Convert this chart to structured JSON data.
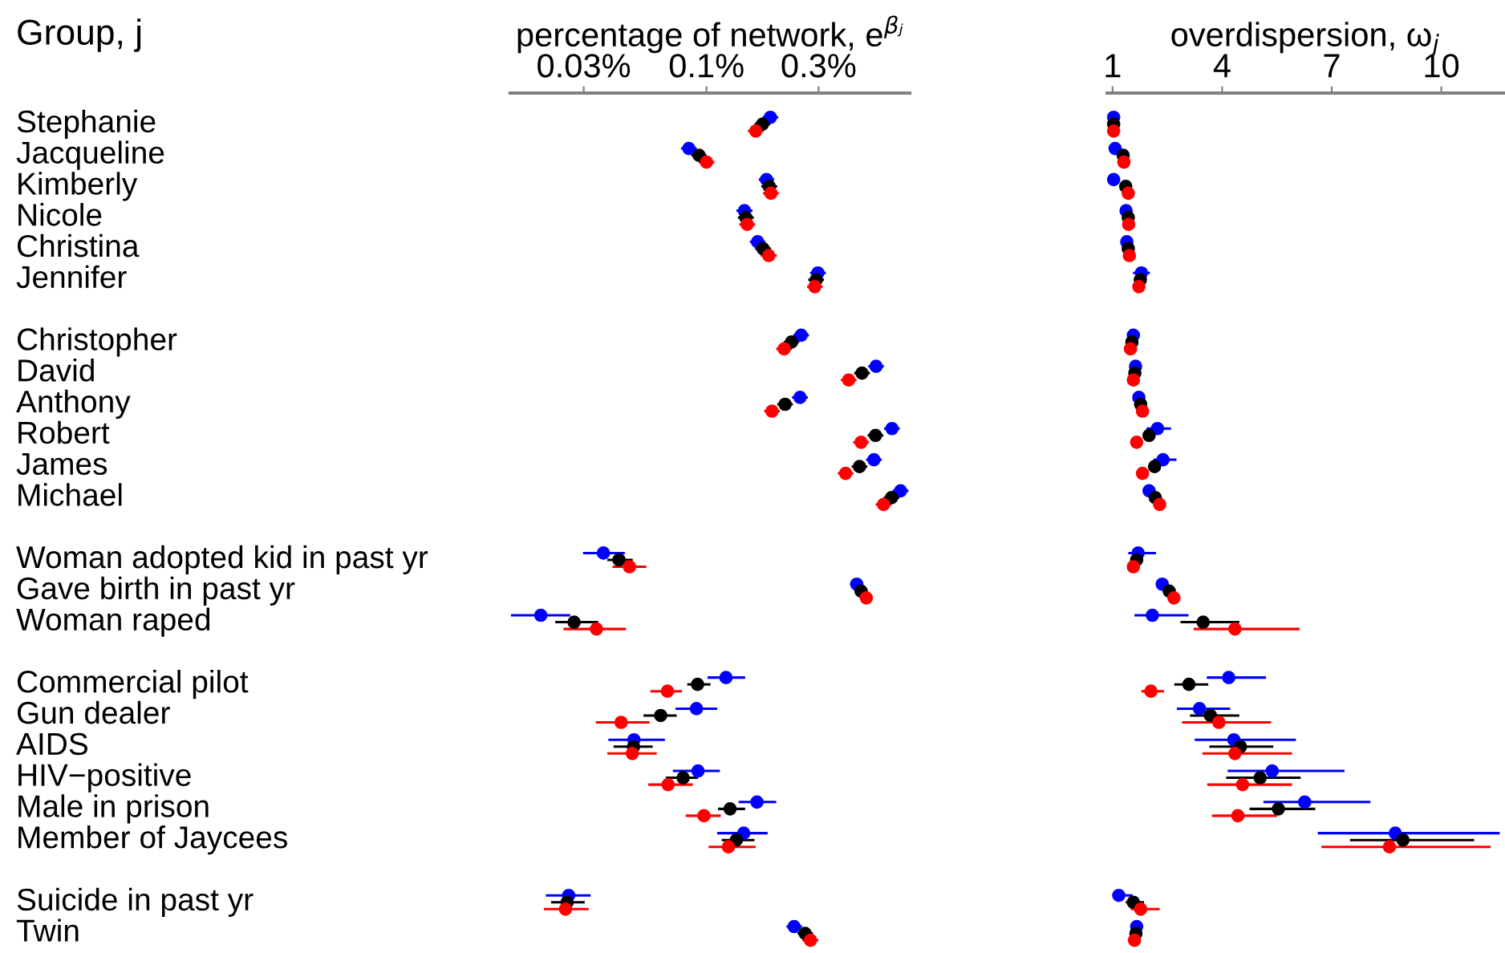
{
  "chart_data": [
    {
      "type": "scatter",
      "orientation": "horizontal",
      "ylabel": "Group, j",
      "xlabel": "percentage of network, e$^{βⱼ}$",
      "log": "x",
      "marker": "circle",
      "categories": [
        "Stephanie",
        "Jacqueline",
        "Kimberly",
        "Nicole",
        "Christina",
        "Jennifer",
        null,
        "Christopher",
        "David",
        "Anthony",
        "Robert",
        "James",
        "Michael",
        null,
        "Woman adopted kid in past yr",
        "Gave birth in past yr",
        "Woman raped",
        null,
        "Commercial pilot",
        "Gun dealer",
        "AIDS",
        "HIV−positive",
        "Male in prison",
        "Member of Jaycees",
        null,
        "Suicide in past yr",
        "Twin"
      ],
      "xlim": [
        0.0146,
        0.733
      ],
      "xticks": [
        {
          "value": 0.03,
          "label": "0.03%"
        },
        {
          "value": 0.1,
          "label": "0.1%"
        },
        {
          "value": 0.3,
          "label": "0.3%"
        }
      ],
      "series": [
        {
          "color": "#0000ff",
          "values": [
            0.187,
            0.0841,
            0.18,
            0.145,
            0.165,
            0.298,
            null,
            0.253,
            0.527,
            0.25,
            0.616,
            0.516,
            0.67,
            null,
            0.0364,
            0.436,
            0.0197,
            null,
            0.121,
            0.0906,
            0.0491,
            0.092,
            0.164,
            0.144,
            null,
            0.0259,
            0.236
          ],
          "errors": [
            [
              0.173,
              0.202
            ],
            [
              0.0779,
              0.0908
            ],
            [
              0.167,
              0.194
            ],
            [
              0.134,
              0.157
            ],
            [
              0.153,
              0.178
            ],
            [
              0.276,
              0.322
            ],
            null,
            [
              0.234,
              0.273
            ],
            [
              0.488,
              0.569
            ],
            [
              0.231,
              0.27
            ],
            [
              0.57,
              0.665
            ],
            [
              0.478,
              0.557
            ],
            [
              0.62,
              0.724
            ],
            null,
            [
              0.0298,
              0.0449
            ],
            [
              0.409,
              0.464
            ],
            [
              0.0147,
              0.0263
            ],
            null,
            [
              0.101,
              0.146
            ],
            [
              0.0738,
              0.111
            ],
            [
              0.0382,
              0.0665
            ],
            [
              0.0719,
              0.114
            ],
            [
              0.137,
              0.198
            ],
            [
              0.111,
              0.182
            ],
            null,
            [
              0.0207,
              0.0321
            ],
            [
              0.219,
              0.255
            ]
          ]
        },
        {
          "color": "#000000",
          "values": [
            0.173,
            0.093,
            0.185,
            0.147,
            0.174,
            0.293,
            null,
            0.23,
            0.459,
            0.216,
            0.524,
            0.448,
            0.613,
            null,
            0.0424,
            0.455,
            0.0273,
            null,
            0.0916,
            0.0638,
            0.0489,
            0.0795,
            0.126,
            0.134,
            null,
            0.0255,
            0.263
          ],
          "errors": [
            [
              0.16,
              0.187
            ],
            [
              0.0861,
              0.1
            ],
            [
              0.171,
              0.2
            ],
            [
              0.136,
              0.159
            ],
            [
              0.161,
              0.188
            ],
            [
              0.271,
              0.316
            ],
            null,
            [
              0.213,
              0.248
            ],
            [
              0.425,
              0.496
            ],
            [
              0.2,
              0.233
            ],
            [
              0.485,
              0.566
            ],
            [
              0.415,
              0.484
            ],
            [
              0.568,
              0.662
            ],
            null,
            [
              0.0378,
              0.0485
            ],
            [
              0.427,
              0.485
            ],
            [
              0.0227,
              0.0346
            ],
            null,
            [
              0.0828,
              0.104
            ],
            [
              0.0539,
              0.0746
            ],
            [
              0.0402,
              0.059
            ],
            [
              0.0672,
              0.092
            ],
            [
              0.112,
              0.146
            ],
            [
              0.116,
              0.16
            ],
            null,
            [
              0.0218,
              0.0303
            ],
            [
              0.244,
              0.284
            ]
          ]
        },
        {
          "color": "#ff0000",
          "values": [
            0.162,
            0.1,
            0.188,
            0.149,
            0.184,
            0.289,
            null,
            0.214,
            0.403,
            0.19,
            0.455,
            0.391,
            0.567,
            null,
            0.047,
            0.479,
            0.034,
            null,
            0.0682,
            0.0433,
            0.0483,
            0.0686,
            0.0975,
            0.124,
            null,
            0.0251,
            0.277
          ],
          "errors": [
            [
              0.15,
              0.175
            ],
            [
              0.0926,
              0.108
            ],
            [
              0.174,
              0.203
            ],
            [
              0.138,
              0.161
            ],
            [
              0.17,
              0.199
            ],
            [
              0.268,
              0.312
            ],
            null,
            [
              0.198,
              0.231
            ],
            [
              0.373,
              0.435
            ],
            [
              0.176,
              0.205
            ],
            [
              0.421,
              0.491
            ],
            [
              0.362,
              0.422
            ],
            [
              0.525,
              0.612
            ],
            null,
            [
              0.0398,
              0.0554
            ],
            [
              0.45,
              0.51
            ],
            [
              0.0246,
              0.0454
            ],
            null,
            [
              0.0577,
              0.0786
            ],
            [
              0.0338,
              0.0572
            ],
            [
              0.0378,
              0.0614
            ],
            [
              0.0565,
              0.0874
            ],
            [
              0.0815,
              0.115
            ],
            [
              0.102,
              0.162
            ],
            null,
            [
              0.0203,
              0.0315
            ],
            [
              0.256,
              0.299
            ]
          ]
        }
      ]
    },
    {
      "type": "scatter",
      "orientation": "horizontal",
      "xlabel": "overdispersion, ω$_{j}$",
      "marker": "circle",
      "tick_labels": "x",
      "xlim": [
        0.85,
        11.7
      ],
      "xticks": [
        1,
        4,
        7,
        10
      ],
      "series": [
        {
          "color": "#0000ff",
          "values": [
            1.03,
            1.07,
            1.03,
            1.37,
            1.39,
            1.79,
            null,
            1.57,
            1.63,
            1.72,
            2.23,
            2.38,
            2.0,
            null,
            1.7,
            2.36,
            2.09,
            null,
            4.18,
            3.38,
            4.32,
            5.37,
            6.26,
            8.74,
            null,
            1.17,
            1.66
          ],
          "errors": [
            null,
            [
              1.02,
              1.12
            ],
            null,
            [
              1.27,
              1.47
            ],
            [
              1.29,
              1.49
            ],
            [
              1.56,
              2.02
            ],
            null,
            [
              1.45,
              1.69
            ],
            [
              1.51,
              1.75
            ],
            [
              1.6,
              1.84
            ],
            [
              1.93,
              2.6
            ],
            [
              2.12,
              2.75
            ],
            [
              1.88,
              2.12
            ],
            null,
            [
              1.43,
              2.19
            ],
            [
              2.2,
              2.52
            ],
            [
              1.6,
              3.08
            ],
            null,
            [
              3.58,
              5.2
            ],
            [
              2.76,
              4.22
            ],
            [
              3.25,
              6.02
            ],
            [
              4.15,
              7.35
            ],
            [
              5.13,
              8.06
            ],
            [
              6.62,
              11.6
            ],
            null,
            [
              1.0,
              1.55
            ],
            [
              1.53,
              1.79
            ]
          ]
        },
        {
          "color": "#000000",
          "values": [
            1.03,
            1.29,
            1.36,
            1.43,
            1.43,
            1.76,
            null,
            1.53,
            1.61,
            1.77,
            2.0,
            2.15,
            2.17,
            null,
            1.66,
            2.55,
            3.48,
            null,
            3.09,
            3.68,
            4.5,
            5.04,
            5.54,
            8.95,
            null,
            1.57,
            1.64
          ],
          "errors": [
            null,
            [
              1.22,
              1.36
            ],
            [
              1.29,
              1.43
            ],
            [
              1.36,
              1.5
            ],
            [
              1.36,
              1.5
            ],
            [
              1.66,
              1.86
            ],
            null,
            [
              1.45,
              1.61
            ],
            [
              1.53,
              1.69
            ],
            [
              1.67,
              1.87
            ],
            [
              1.88,
              2.12
            ],
            [
              2.03,
              2.27
            ],
            [
              2.05,
              2.29
            ],
            null,
            [
              1.5,
              1.82
            ],
            [
              2.4,
              2.7
            ],
            [
              2.86,
              4.47
            ],
            null,
            [
              2.69,
              3.62
            ],
            [
              3.12,
              4.47
            ],
            [
              3.65,
              5.4
            ],
            [
              4.11,
              6.15
            ],
            [
              4.75,
              6.55
            ],
            [
              7.5,
              10.9
            ],
            null,
            [
              1.36,
              1.86
            ],
            [
              1.54,
              1.74
            ]
          ]
        },
        {
          "color": "#ff0000",
          "values": [
            1.03,
            1.31,
            1.43,
            1.44,
            1.46,
            1.72,
            null,
            1.49,
            1.57,
            1.82,
            1.66,
            1.82,
            2.29,
            null,
            1.57,
            2.68,
            4.35,
            null,
            2.05,
            3.91,
            4.35,
            4.56,
            4.43,
            8.58,
            null,
            1.77,
            1.6
          ],
          "errors": [
            null,
            [
              1.24,
              1.38
            ],
            [
              1.36,
              1.5
            ],
            [
              1.37,
              1.51
            ],
            [
              1.39,
              1.53
            ],
            [
              1.6,
              1.84
            ],
            null,
            [
              1.39,
              1.59
            ],
            [
              1.47,
              1.67
            ],
            [
              1.72,
              1.92
            ],
            [
              1.56,
              1.76
            ],
            [
              1.72,
              1.92
            ],
            [
              2.16,
              2.42
            ],
            null,
            [
              1.47,
              1.67
            ],
            [
              2.53,
              2.83
            ],
            [
              3.22,
              6.12
            ],
            null,
            [
              1.79,
              2.41
            ],
            [
              2.9,
              5.34
            ],
            [
              3.46,
              5.91
            ],
            [
              3.59,
              5.91
            ],
            [
              3.72,
              5.5
            ],
            [
              6.72,
              11.35
            ],
            null,
            [
              1.5,
              2.29
            ],
            [
              1.5,
              1.7
            ]
          ]
        }
      ]
    }
  ]
}
